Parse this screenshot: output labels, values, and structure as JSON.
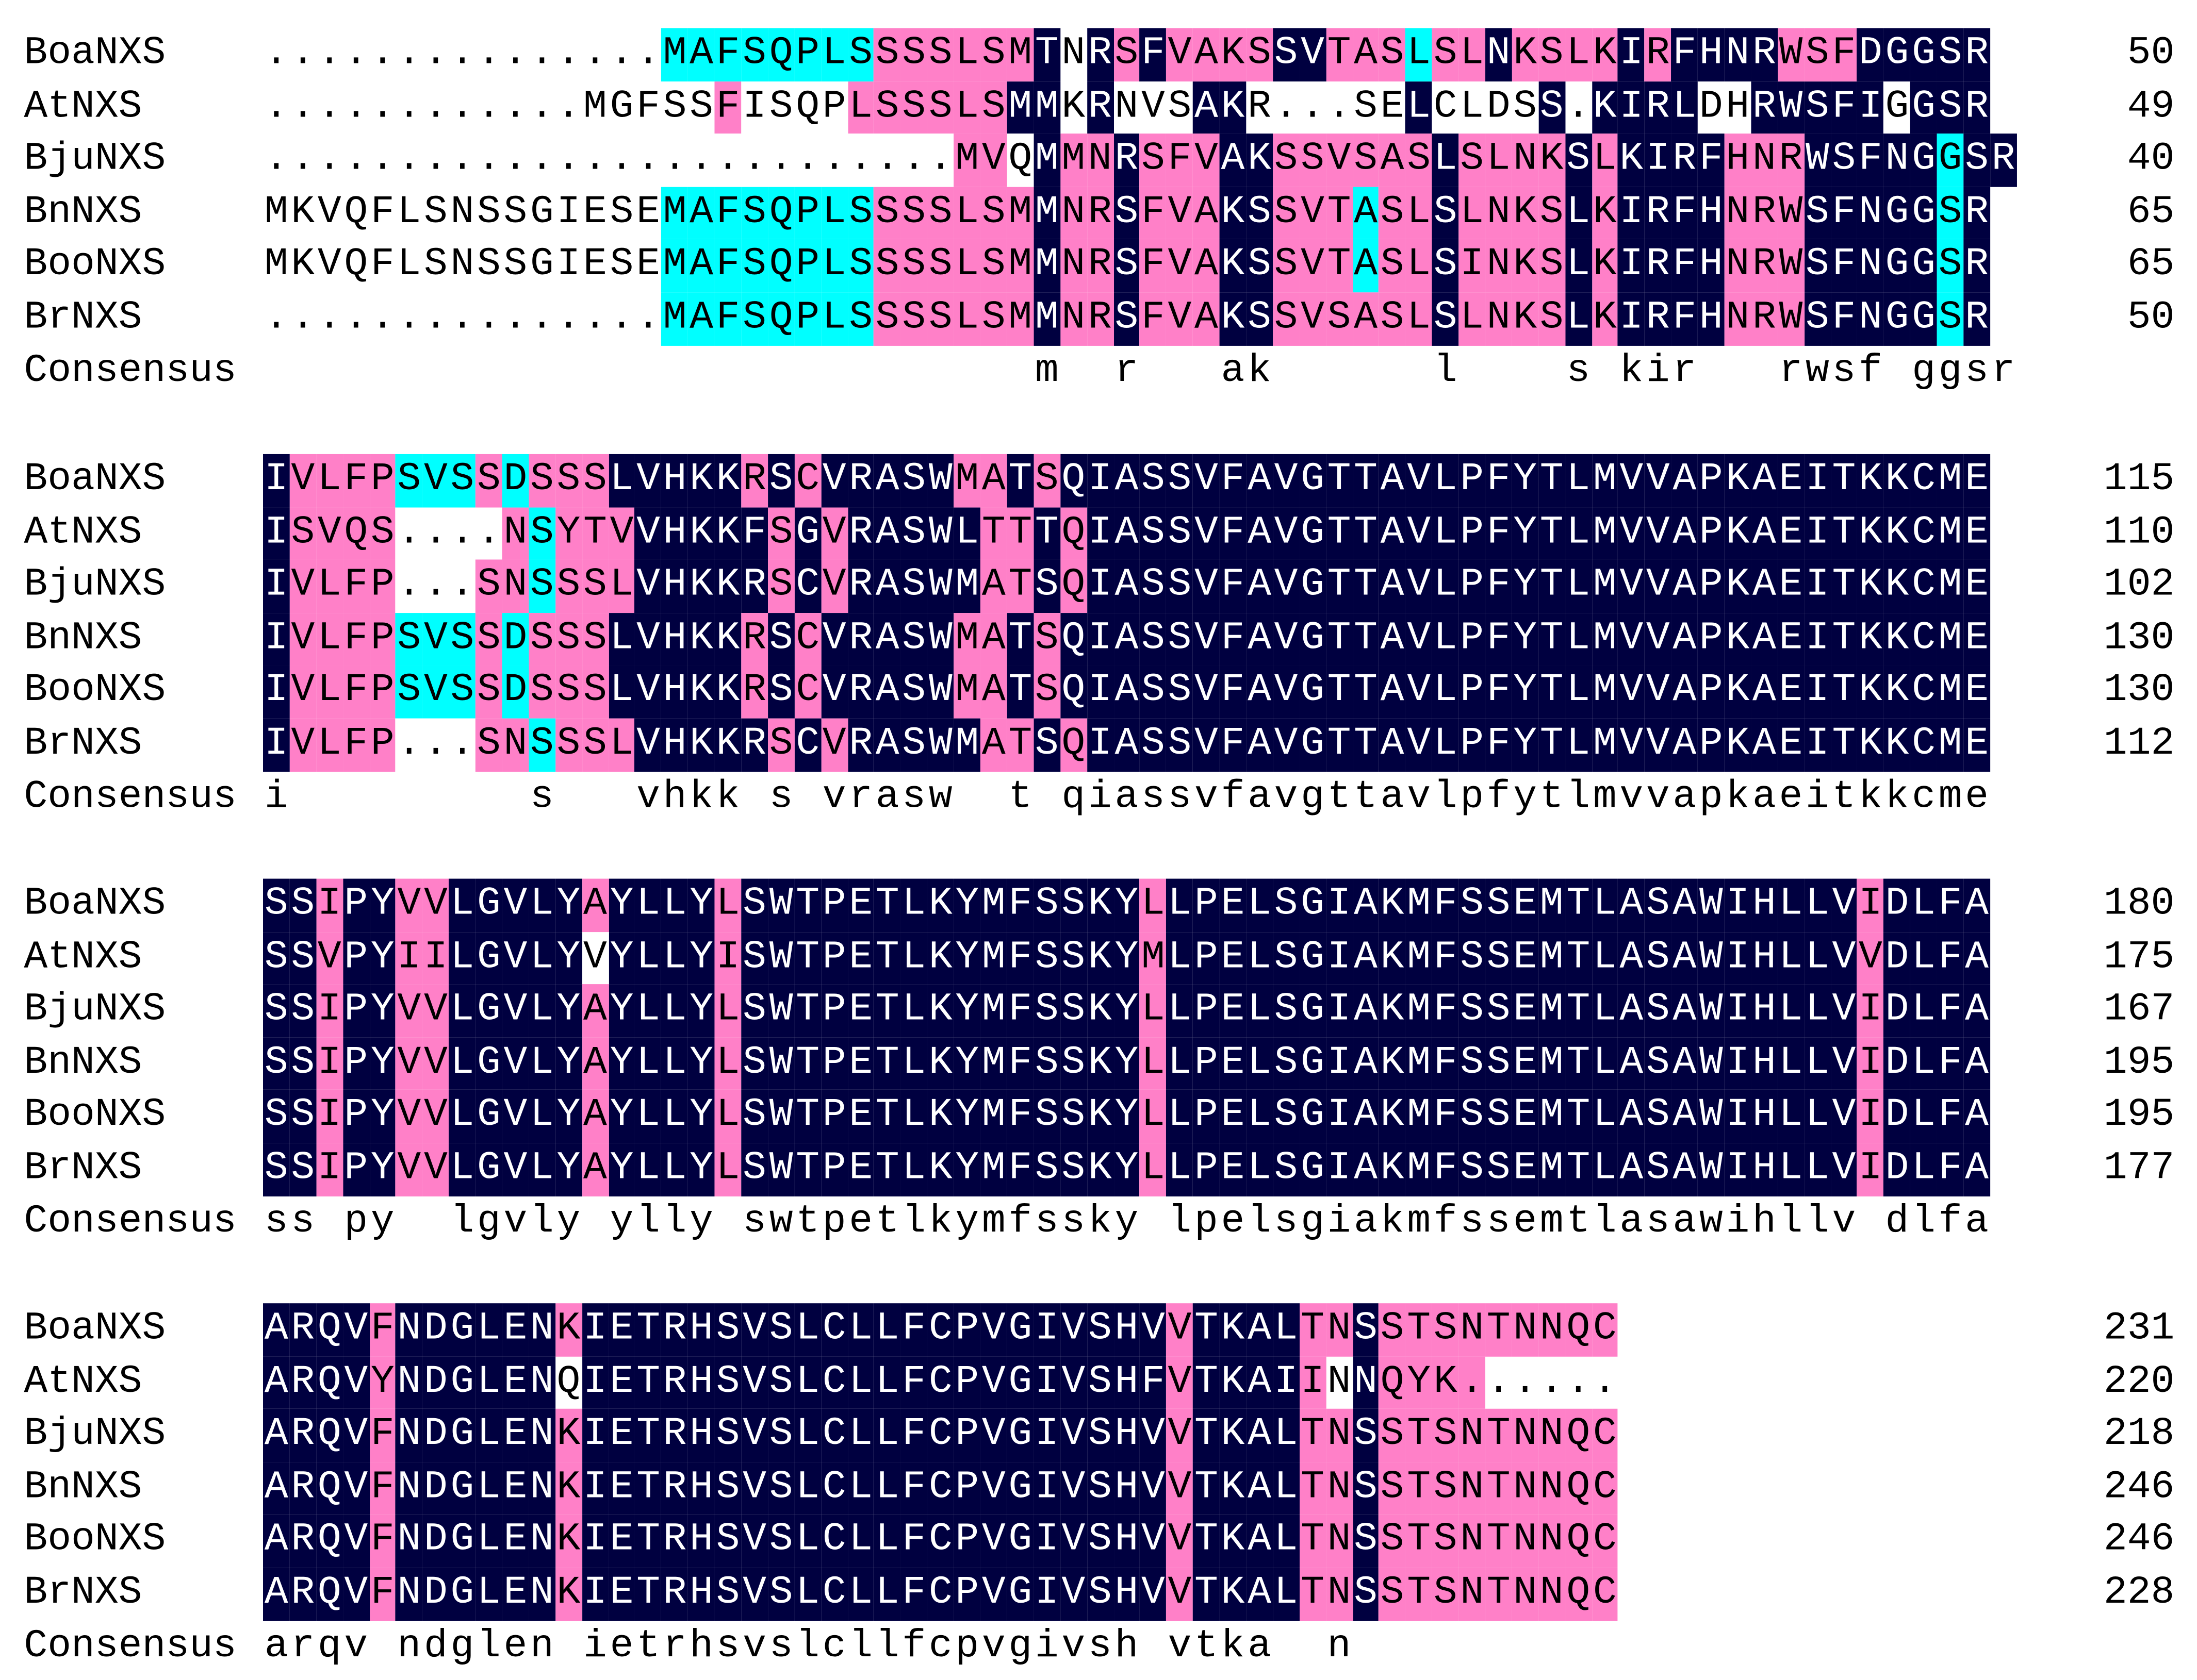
{
  "palette": {
    "identical": "#000040",
    "high": "#ff80c8",
    "partial": "#00ffff",
    "none": "#ffffff"
  },
  "blocks": [
    {
      "rows": [
        {
          "name": "BoaNXS",
          "seq": "...............MAFSQPLSSSSLSMTNRSFVAKSSVTASLSLNKSLKIRFHNRWSFDGGSR",
          "num": "50",
          "cls": "NNNNNNNNNNNNNNNCCCCCCCCPPPPPPDNDPDPPPPDDPPPCPPDPPPPDPDDDDPPPDDDDDCDDDD"
        },
        {
          "name": "AtNXS",
          "seq": "............MGFSSFISQPLSSSLSMMKRNVSAKR...SELCLDSS.KIRLDHRWSFIGGSR",
          "num": "49",
          "cls": "NNNNNNNNNNNNNNNNNPNNNNPPPPPPDDNDNNNDDNNNNNNDNNNNDNDDDDNNDDDDDNDDDD"
        },
        {
          "name": "BjuNXS",
          "seq": "..........................MVQMMNRSFVAKSSVSASLSLNKSLKIRFHNRWSFNGGSR",
          "num": "40",
          "cls": "NNNNNNNNNNNNNNNNNNNNNNNNNNPPNDPPDPPPDDPPPPPPDPPPPDPDDDDPPPDDDDDCDDDD"
        },
        {
          "name": "BnNXS",
          "seq": "MKVQFLSNSSGIESEMAFSQPLSSSSLSMMNRSFVAKSSVTASLSLNKSLKIRFHNRWSFNGGSR",
          "num": "65",
          "cls": "NNNNNNNNNNNNNNNCCCCCCCCPPPPPPDPPDPPPDDPPPCPPDPPPPDPDDDDPPPDDDDDCDDDD"
        },
        {
          "name": "BooNXS",
          "seq": "MKVQFLSNSSGIESEMAFSQPLSSSSLSMMNRSFVAKSSVTASLSINKSLKIRFHNRWSFNGGSR",
          "num": "65",
          "cls": "NNNNNNNNNNNNNNNCCCCCCCCPPPPPPDPPDPPPDDPPPCPPDPPPPDPDDDDPPPDDDDDCDDDD"
        },
        {
          "name": "BrNXS",
          "seq": "...............MAFSQPLSSSSLSMMNRSFVAKSSVSASLSLNKSLKIRFHNRWSFNGGSR",
          "num": "50",
          "cls": "NNNNNNNNNNNNNNNCCCCCCCCPPPPPPDPPDPPPDDPPPPPPDPPPPDPDDDDPPPDDDDDCDDDD"
        }
      ],
      "consensus_label": "Consensus",
      "consensus": "                             m  r   ak      l    s kir   rwsf ggsr"
    },
    {
      "rows": [
        {
          "name": "BoaNXS",
          "seq": "IVLFPSVSSDSSSLVHKKRSCVRASWMATSQIASSVFAVGTTAVLPFYTLMVVAPKAEITKKCME",
          "num": "115",
          "cls": "DPPPPCCCPCPPPDDDDDPDPDDDDDPPDPDDDDDDDDDDDDDDDDDDDDDDDDDDDDDDDDDDD"
        },
        {
          "name": "AtNXS",
          "seq": "ISVQS....NSYTVVHKKFSGVRASWLTTTQIASSVFAVGTTAVLPFYTLMVVAPKAEITKKCME",
          "num": "110",
          "cls": "DPPPPNNNNPCPPPDDDDDPDPDDDDDPPDPDDDDDDDDDDDDDDDDDDDDDDDDDDDDDDDDDD"
        },
        {
          "name": "BjuNXS",
          "seq": "IVLFP...SNSSSLVHKKRSCVRASWMATSQIASSVFAVGTTAVLPFYTLMVVAPKAEITKKCME",
          "num": "102",
          "cls": "DPPPPNNNPPCPPPDDDDDPDPDDDDDPPDPDDDDDDDDDDDDDDDDDDDDDDDDDDDDDDDDDD"
        },
        {
          "name": "BnNXS",
          "seq": "IVLFPSVSSDSSSLVHKKRSCVRASWMATSQIASSVFAVGTTAVLPFYTLMVVAPKAEITKKCME",
          "num": "130",
          "cls": "DPPPPCCCPCPPPDDDDDPDPDDDDDPPDPDDDDDDDDDDDDDDDDDDDDDDDDDDDDDDDDDDD"
        },
        {
          "name": "BooNXS",
          "seq": "IVLFPSVSSDSSSLVHKKRSCVRASWMATSQIASSVFAVGTTAVLPFYTLMVVAPKAEITKKCME",
          "num": "130",
          "cls": "DPPPPCCCPCPPPDDDDDPDPDDDDDPPDPDDDDDDDDDDDDDDDDDDDDDDDDDDDDDDDDDDD"
        },
        {
          "name": "BrNXS",
          "seq": "IVLFP...SNSSSLVHKKRSCVRASWMATSQIASSVFAVGTTAVLPFYTLMVVAPKAEITKKCME",
          "num": "112",
          "cls": "DPPPPNNNPPCPPPDDDDDPDPDDDDDPPDPDDDDDDDDDDDDDDDDDDDDDDDDDDDDDDDDDD"
        }
      ],
      "consensus_label": "Consensus",
      "consensus": "i         s   vhkk s vrasw  t qiassvfavgttavlpfytlmvvapkaeitkkcme"
    },
    {
      "rows": [
        {
          "name": "BoaNXS",
          "seq": "SSIPYVVLGVLYAYLLYLSWTPETLKYMFSSKYLLPELSGIAKMFSSEMTLASAWIHLLVIDLFA",
          "num": "180",
          "cls": "DDPDDPPDDDDDPDDDDPDDDDDDDDDDDDDDDPDDDDDDDDDDDDDDDDDDDDDDDDDDPDDDD"
        },
        {
          "name": "AtNXS",
          "seq": "SSVPYIILGVLYVYLLYISWTPETLKYMFSSKYMLPELSGIAKMFSSEMTLASAWIHLLVVDLFA",
          "num": "175",
          "cls": "DDPDDPPDDDDDNDDDDPDDDDDDDDDDDDDDDPDDDDDDDDDDDDDDDDDDDDDDDDDDPDDDD"
        },
        {
          "name": "BjuNXS",
          "seq": "SSIPYVVLGVLYAYLLYLSWTPETLKYMFSSKYLLPELSGIAKMFSSEMTLASAWIHLLVIDLFA",
          "num": "167",
          "cls": "DDPDDPPDDDDDPDDDDPDDDDDDDDDDDDDDDPDDDDDDDDDDDDDDDDDDDDDDDDDDPDDDD"
        },
        {
          "name": "BnNXS",
          "seq": "SSIPYVVLGVLYAYLLYLSWTPETLKYMFSSKYLLPELSGIAKMFSSEMTLASAWIHLLVIDLFA",
          "num": "195",
          "cls": "DDPDDPPDDDDDPDDDDPDDDDDDDDDDDDDDDPDDDDDDDDDDDDDDDDDDDDDDDDDDPDDDD"
        },
        {
          "name": "BooNXS",
          "seq": "SSIPYVVLGVLYAYLLYLSWTPETLKYMFSSKYLLPELSGIAKMFSSEMTLASAWIHLLVIDLFA",
          "num": "195",
          "cls": "DDPDDPPDDDDDPDDDDPDDDDDDDDDDDDDDDPDDDDDDDDDDDDDDDDDDDDDDDDDDPDDDD"
        },
        {
          "name": "BrNXS",
          "seq": "SSIPYVVLGVLYAYLLYLSWTPETLKYMFSSKYLLPELSGIAKMFSSEMTLASAWIHLLVIDLFA",
          "num": "177",
          "cls": "DDPDDPPDDDDDPDDDDPDDDDDDDDDDDDDDDPDDDDDDDDDDDDDDDDDDDDDDDDDDPDDDD"
        }
      ],
      "consensus_label": "Consensus",
      "consensus": "ss py  lgvly ylly swtpetlkymfssky lpelsgiakmfssemtlasawihllv dlfa"
    },
    {
      "rows": [
        {
          "name": "BoaNXS",
          "seq": "ARQVFNDGLENKIETRHSVSLCLLFCPVGIVSHVVTKALTNSSTSNTNNQC",
          "num": "231",
          "cls": "DDDDPDDDDDDPDDDDDDDDDDDDDDDDDDDDDDPDDDDPPDPPPPPPPPPP"
        },
        {
          "name": "AtNXS",
          "seq": "ARQVYNDGLENQIETRHSVSLCLLFCPVGIVSHFVTKAIINNQYK......",
          "num": "220",
          "cls": "DDDDPDDDDDDNDDDDDDDDDDDDDDDDDDDDDDPDDDDPNDPPPPNNNNNN"
        },
        {
          "name": "BjuNXS",
          "seq": "ARQVFNDGLENKIETRHSVSLCLLFCPVGIVSHVVTKALTNSSTSNTNNQC",
          "num": "218",
          "cls": "DDDDPDDDDDDPDDDDDDDDDDDDDDDDDDDDDDPDDDDPPDPPPPPPPPPP"
        },
        {
          "name": "BnNXS",
          "seq": "ARQVFNDGLENKIETRHSVSLCLLFCPVGIVSHVVTKALTNSSTSNTNNQC",
          "num": "246",
          "cls": "DDDDPDDDDDDPDDDDDDDDDDDDDDDDDDDDDDPDDDDPPDPPPPPPPPPP"
        },
        {
          "name": "BooNXS",
          "seq": "ARQVFNDGLENKIETRHSVSLCLLFCPVGIVSHVVTKALTNSSTSNTNNQC",
          "num": "246",
          "cls": "DDDDPDDDDDDPDDDDDDDDDDDDDDDDDDDDDDPDDDDPPDPPPPPPPPPP"
        },
        {
          "name": "BrNXS",
          "seq": "ARQVFNDGLENKIETRHSVSLCLLFCPVGIVSHVVTKALTNSSTSNTNNQC",
          "num": "228",
          "cls": "DDDDPDDDDDDPDDDDDDDDDDDDDDDDDDDDDDPDDDDPPDPPPPPPPPPP"
        }
      ],
      "consensus_label": "Consensus",
      "consensus": "arqv ndglen ietrhsvslcllfcpvgivsh vtka  n"
    }
  ]
}
